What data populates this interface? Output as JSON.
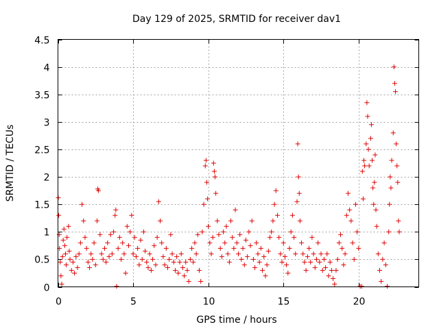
{
  "chart_data": {
    "type": "scatter",
    "title": "Day 129 of 2025, SRMTID for receiver dav1",
    "xlabel": "GPS time / hours",
    "ylabel": "SRMTID / TECUs",
    "xlim": [
      0,
      24
    ],
    "ylim": [
      0,
      4.5
    ],
    "x_ticks": [
      0,
      5,
      10,
      15,
      20
    ],
    "y_ticks": [
      0,
      0.5,
      1,
      1.5,
      2,
      2.5,
      3,
      3.5,
      4,
      4.5
    ],
    "x_tick_labels": [
      "0",
      "5",
      "10",
      "15",
      "20"
    ],
    "y_tick_labels": [
      "0",
      "0.5",
      "1",
      "1.5",
      "2",
      "2.5",
      "3",
      "3.5",
      "4",
      "4.5"
    ],
    "grid": true,
    "marker": "+",
    "color": "#e00000",
    "series": [
      {
        "name": "dav1",
        "points": [
          [
            0.02,
            1.62
          ],
          [
            0.05,
            1.3
          ],
          [
            0.08,
            0.95
          ],
          [
            0.1,
            0.7
          ],
          [
            0.15,
            0.45
          ],
          [
            0.2,
            0.2
          ],
          [
            0.25,
            0.05
          ],
          [
            0.3,
            0.55
          ],
          [
            0.35,
            0.85
          ],
          [
            0.4,
            1.05
          ],
          [
            0.45,
            0.75
          ],
          [
            0.5,
            0.6
          ],
          [
            0.55,
            0.4
          ],
          [
            0.6,
            0.9
          ],
          [
            0.7,
            1.1
          ],
          [
            0.75,
            0.65
          ],
          [
            0.8,
            0.5
          ],
          [
            0.9,
            0.3
          ],
          [
            1.0,
            0.45
          ],
          [
            1.1,
            0.25
          ],
          [
            1.2,
            0.55
          ],
          [
            1.3,
            0.35
          ],
          [
            1.4,
            0.6
          ],
          [
            1.5,
            0.8
          ],
          [
            1.6,
            1.5
          ],
          [
            1.7,
            1.2
          ],
          [
            1.8,
            0.9
          ],
          [
            1.9,
            0.7
          ],
          [
            2.0,
            0.45
          ],
          [
            2.1,
            0.35
          ],
          [
            2.2,
            0.6
          ],
          [
            2.3,
            0.5
          ],
          [
            2.4,
            0.8
          ],
          [
            2.5,
            0.4
          ],
          [
            2.6,
            1.2
          ],
          [
            2.65,
            1.78
          ],
          [
            2.7,
            1.75
          ],
          [
            2.8,
            0.95
          ],
          [
            2.9,
            0.6
          ],
          [
            3.0,
            0.5
          ],
          [
            3.1,
            0.7
          ],
          [
            3.2,
            0.45
          ],
          [
            3.3,
            0.8
          ],
          [
            3.4,
            0.55
          ],
          [
            3.5,
            0.95
          ],
          [
            3.6,
            0.6
          ],
          [
            3.7,
            1.0
          ],
          [
            3.8,
            1.3
          ],
          [
            3.85,
            1.4
          ],
          [
            3.9,
            0.01
          ],
          [
            4.0,
            0.7
          ],
          [
            4.1,
            0.9
          ],
          [
            4.2,
            0.5
          ],
          [
            4.3,
            0.8
          ],
          [
            4.4,
            0.6
          ],
          [
            4.5,
            0.25
          ],
          [
            4.6,
            1.1
          ],
          [
            4.7,
            0.75
          ],
          [
            4.8,
            1.0
          ],
          [
            4.9,
            1.3
          ],
          [
            5.0,
            0.6
          ],
          [
            5.1,
            0.9
          ],
          [
            5.2,
            0.55
          ],
          [
            5.3,
            0.7
          ],
          [
            5.4,
            0.4
          ],
          [
            5.5,
            0.85
          ],
          [
            5.6,
            0.5
          ],
          [
            5.7,
            1.0
          ],
          [
            5.8,
            0.65
          ],
          [
            5.9,
            0.45
          ],
          [
            6.0,
            0.35
          ],
          [
            6.1,
            0.6
          ],
          [
            6.2,
            0.3
          ],
          [
            6.3,
            0.5
          ],
          [
            6.4,
            0.75
          ],
          [
            6.5,
            0.4
          ],
          [
            6.6,
            0.9
          ],
          [
            6.7,
            1.55
          ],
          [
            6.8,
            1.2
          ],
          [
            6.9,
            0.8
          ],
          [
            7.0,
            0.55
          ],
          [
            7.1,
            0.4
          ],
          [
            7.2,
            0.7
          ],
          [
            7.3,
            0.35
          ],
          [
            7.4,
            0.5
          ],
          [
            7.5,
            0.95
          ],
          [
            7.6,
            0.6
          ],
          [
            7.7,
            0.45
          ],
          [
            7.8,
            0.3
          ],
          [
            7.9,
            0.55
          ],
          [
            8.0,
            0.25
          ],
          [
            8.1,
            0.45
          ],
          [
            8.2,
            0.6
          ],
          [
            8.3,
            0.35
          ],
          [
            8.4,
            0.2
          ],
          [
            8.5,
            0.45
          ],
          [
            8.6,
            0.3
          ],
          [
            8.7,
            0.1
          ],
          [
            8.8,
            0.5
          ],
          [
            8.9,
            0.7
          ],
          [
            9.0,
            0.45
          ],
          [
            9.1,
            0.8
          ],
          [
            9.2,
            0.6
          ],
          [
            9.3,
            0.95
          ],
          [
            9.4,
            0.3
          ],
          [
            9.5,
            0.1
          ],
          [
            9.6,
            1.0
          ],
          [
            9.7,
            1.5
          ],
          [
            9.8,
            2.2
          ],
          [
            9.85,
            2.3
          ],
          [
            9.9,
            1.9
          ],
          [
            9.95,
            1.6
          ],
          [
            10.0,
            1.1
          ],
          [
            10.1,
            0.8
          ],
          [
            10.2,
            0.6
          ],
          [
            10.3,
            0.9
          ],
          [
            10.35,
            2.25
          ],
          [
            10.4,
            2.1
          ],
          [
            10.45,
            2.0
          ],
          [
            10.5,
            1.7
          ],
          [
            10.6,
            1.2
          ],
          [
            10.7,
            0.95
          ],
          [
            10.8,
            0.7
          ],
          [
            10.9,
            0.55
          ],
          [
            11.0,
            1.0
          ],
          [
            11.1,
            0.8
          ],
          [
            11.2,
            1.1
          ],
          [
            11.3,
            0.6
          ],
          [
            11.4,
            0.45
          ],
          [
            11.5,
            1.2
          ],
          [
            11.6,
            0.9
          ],
          [
            11.7,
            0.7
          ],
          [
            11.8,
            1.4
          ],
          [
            11.9,
            0.8
          ],
          [
            12.0,
            0.6
          ],
          [
            12.1,
            0.95
          ],
          [
            12.2,
            0.5
          ],
          [
            12.3,
            0.7
          ],
          [
            12.4,
            0.4
          ],
          [
            12.5,
            0.85
          ],
          [
            12.6,
            0.55
          ],
          [
            12.7,
            1.0
          ],
          [
            12.8,
            0.75
          ],
          [
            12.9,
            1.2
          ],
          [
            13.0,
            0.5
          ],
          [
            13.1,
            0.35
          ],
          [
            13.2,
            0.8
          ],
          [
            13.3,
            0.6
          ],
          [
            13.4,
            0.45
          ],
          [
            13.5,
            0.7
          ],
          [
            13.6,
            0.3
          ],
          [
            13.7,
            0.55
          ],
          [
            13.8,
            0.2
          ],
          [
            13.9,
            0.4
          ],
          [
            14.0,
            0.65
          ],
          [
            14.1,
            0.9
          ],
          [
            14.2,
            1.0
          ],
          [
            14.3,
            1.2
          ],
          [
            14.4,
            1.5
          ],
          [
            14.5,
            1.75
          ],
          [
            14.6,
            1.3
          ],
          [
            14.7,
            0.9
          ],
          [
            14.8,
            0.6
          ],
          [
            14.9,
            0.45
          ],
          [
            15.0,
            0.8
          ],
          [
            15.1,
            0.55
          ],
          [
            15.2,
            0.4
          ],
          [
            15.3,
            0.25
          ],
          [
            15.4,
            0.7
          ],
          [
            15.5,
            1.0
          ],
          [
            15.6,
            1.3
          ],
          [
            15.7,
            0.9
          ],
          [
            15.8,
            0.6
          ],
          [
            15.9,
            1.55
          ],
          [
            15.95,
            2.6
          ],
          [
            16.0,
            2.0
          ],
          [
            16.05,
            1.7
          ],
          [
            16.1,
            1.2
          ],
          [
            16.2,
            0.8
          ],
          [
            16.3,
            0.6
          ],
          [
            16.4,
            0.45
          ],
          [
            16.5,
            0.3
          ],
          [
            16.6,
            0.55
          ],
          [
            16.7,
            0.7
          ],
          [
            16.8,
            0.45
          ],
          [
            16.9,
            0.9
          ],
          [
            17.0,
            0.6
          ],
          [
            17.1,
            0.35
          ],
          [
            17.2,
            0.5
          ],
          [
            17.3,
            0.8
          ],
          [
            17.4,
            0.45
          ],
          [
            17.5,
            0.6
          ],
          [
            17.6,
            0.3
          ],
          [
            17.7,
            0.5
          ],
          [
            17.8,
            0.35
          ],
          [
            17.9,
            0.6
          ],
          [
            18.0,
            0.2
          ],
          [
            18.1,
            0.45
          ],
          [
            18.2,
            0.3
          ],
          [
            18.3,
            0.15
          ],
          [
            18.4,
            0.05
          ],
          [
            18.5,
            0.3
          ],
          [
            18.6,
            0.5
          ],
          [
            18.7,
            0.8
          ],
          [
            18.8,
            0.95
          ],
          [
            18.9,
            0.7
          ],
          [
            19.0,
            0.4
          ],
          [
            19.1,
            0.6
          ],
          [
            19.2,
            1.3
          ],
          [
            19.3,
            1.7
          ],
          [
            19.4,
            1.4
          ],
          [
            19.5,
            1.2
          ],
          [
            19.6,
            0.8
          ],
          [
            19.7,
            0.5
          ],
          [
            19.8,
            1.5
          ],
          [
            19.9,
            1.0
          ],
          [
            20.0,
            0.7
          ],
          [
            20.1,
            0.01
          ],
          [
            20.2,
            0.01
          ],
          [
            20.25,
            2.1
          ],
          [
            20.3,
            1.6
          ],
          [
            20.35,
            2.3
          ],
          [
            20.4,
            2.2
          ],
          [
            20.5,
            2.6
          ],
          [
            20.55,
            3.35
          ],
          [
            20.6,
            3.1
          ],
          [
            20.65,
            2.5
          ],
          [
            20.7,
            2.2
          ],
          [
            20.8,
            2.7
          ],
          [
            20.85,
            2.95
          ],
          [
            20.9,
            2.3
          ],
          [
            20.95,
            1.8
          ],
          [
            21.0,
            1.5
          ],
          [
            21.05,
            1.9
          ],
          [
            21.1,
            2.4
          ],
          [
            21.15,
            1.4
          ],
          [
            21.2,
            1.1
          ],
          [
            21.3,
            0.6
          ],
          [
            21.4,
            0.3
          ],
          [
            21.5,
            0.1
          ],
          [
            21.6,
            0.5
          ],
          [
            21.7,
            0.8
          ],
          [
            21.8,
            0.4
          ],
          [
            21.9,
            0.01
          ],
          [
            22.0,
            1.0
          ],
          [
            22.05,
            1.5
          ],
          [
            22.1,
            2.0
          ],
          [
            22.15,
            1.8
          ],
          [
            22.2,
            2.3
          ],
          [
            22.3,
            2.8
          ],
          [
            22.35,
            4.0
          ],
          [
            22.4,
            3.7
          ],
          [
            22.45,
            3.55
          ],
          [
            22.5,
            2.6
          ],
          [
            22.55,
            2.2
          ],
          [
            22.6,
            1.9
          ],
          [
            22.65,
            1.2
          ],
          [
            22.7,
            1.0
          ]
        ]
      }
    ]
  }
}
